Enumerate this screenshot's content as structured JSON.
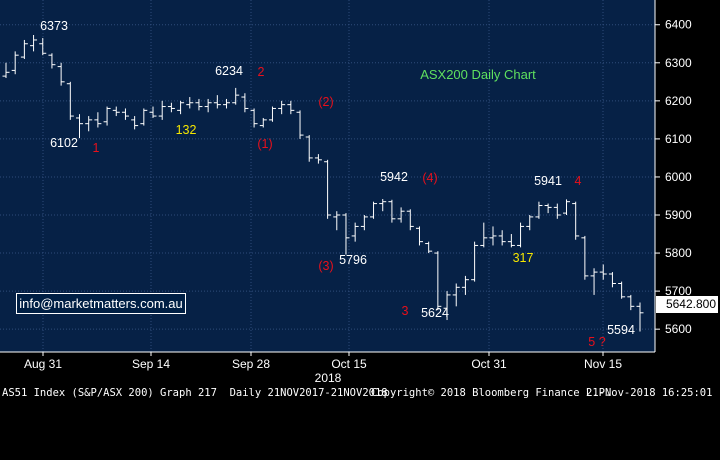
{
  "chart_data": {
    "type": "ohlc",
    "title": "ASX200 Daily Chart",
    "y_ticks": [
      5600,
      5700,
      5800,
      5900,
      6000,
      6100,
      6200,
      6300,
      6400
    ],
    "y_range": [
      5540,
      6465
    ],
    "x_ticks": [
      "Aug 31",
      "Sep 14",
      "Sep 28",
      "Oct 15",
      "Oct 31",
      "Nov 15"
    ],
    "x_year_label": "2018",
    "last_value": "5642.800",
    "grid": true,
    "series": [
      {
        "o": 6265,
        "h": 6300,
        "l": 6260,
        "c": 6275
      },
      {
        "o": 6280,
        "h": 6330,
        "l": 6270,
        "c": 6320
      },
      {
        "o": 6315,
        "h": 6360,
        "l": 6310,
        "c": 6350
      },
      {
        "o": 6345,
        "h": 6373,
        "l": 6330,
        "c": 6360
      },
      {
        "o": 6350,
        "h": 6365,
        "l": 6320,
        "c": 6325
      },
      {
        "o": 6320,
        "h": 6325,
        "l": 6285,
        "c": 6295
      },
      {
        "o": 6290,
        "h": 6300,
        "l": 6240,
        "c": 6250
      },
      {
        "o": 6245,
        "h": 6250,
        "l": 6150,
        "c": 6160
      },
      {
        "o": 6155,
        "h": 6165,
        "l": 6102,
        "c": 6140
      },
      {
        "o": 6140,
        "h": 6160,
        "l": 6120,
        "c": 6150
      },
      {
        "o": 6150,
        "h": 6170,
        "l": 6130,
        "c": 6140
      },
      {
        "o": 6145,
        "h": 6185,
        "l": 6135,
        "c": 6180
      },
      {
        "o": 6175,
        "h": 6185,
        "l": 6160,
        "c": 6170
      },
      {
        "o": 6170,
        "h": 6180,
        "l": 6150,
        "c": 6160
      },
      {
        "o": 6150,
        "h": 6160,
        "l": 6125,
        "c": 6135
      },
      {
        "o": 6140,
        "h": 6180,
        "l": 6135,
        "c": 6175
      },
      {
        "o": 6170,
        "h": 6185,
        "l": 6155,
        "c": 6160
      },
      {
        "o": 6160,
        "h": 6200,
        "l": 6150,
        "c": 6185
      },
      {
        "o": 6185,
        "h": 6195,
        "l": 6170,
        "c": 6180
      },
      {
        "o": 6175,
        "h": 6200,
        "l": 6165,
        "c": 6195
      },
      {
        "o": 6190,
        "h": 6210,
        "l": 6180,
        "c": 6195
      },
      {
        "o": 6195,
        "h": 6205,
        "l": 6175,
        "c": 6185
      },
      {
        "o": 6185,
        "h": 6205,
        "l": 6170,
        "c": 6195
      },
      {
        "o": 6195,
        "h": 6215,
        "l": 6180,
        "c": 6190
      },
      {
        "o": 6190,
        "h": 6205,
        "l": 6180,
        "c": 6195
      },
      {
        "o": 6195,
        "h": 6234,
        "l": 6190,
        "c": 6215
      },
      {
        "o": 6210,
        "h": 6220,
        "l": 6170,
        "c": 6180
      },
      {
        "o": 6175,
        "h": 6180,
        "l": 6130,
        "c": 6140
      },
      {
        "o": 6135,
        "h": 6155,
        "l": 6130,
        "c": 6150
      },
      {
        "o": 6150,
        "h": 6185,
        "l": 6145,
        "c": 6180
      },
      {
        "o": 6180,
        "h": 6200,
        "l": 6165,
        "c": 6190
      },
      {
        "o": 6190,
        "h": 6200,
        "l": 6165,
        "c": 6175
      },
      {
        "o": 6170,
        "h": 6175,
        "l": 6100,
        "c": 6110
      },
      {
        "o": 6105,
        "h": 6110,
        "l": 6040,
        "c": 6050
      },
      {
        "o": 6050,
        "h": 6060,
        "l": 6035,
        "c": 6045
      },
      {
        "o": 6040,
        "h": 6045,
        "l": 5890,
        "c": 5900
      },
      {
        "o": 5895,
        "h": 5910,
        "l": 5860,
        "c": 5900
      },
      {
        "o": 5900,
        "h": 5905,
        "l": 5796,
        "c": 5840
      },
      {
        "o": 5845,
        "h": 5880,
        "l": 5830,
        "c": 5870
      },
      {
        "o": 5870,
        "h": 5900,
        "l": 5860,
        "c": 5895
      },
      {
        "o": 5895,
        "h": 5935,
        "l": 5890,
        "c": 5930
      },
      {
        "o": 5930,
        "h": 5942,
        "l": 5910,
        "c": 5935
      },
      {
        "o": 5935,
        "h": 5940,
        "l": 5880,
        "c": 5890
      },
      {
        "o": 5890,
        "h": 5920,
        "l": 5880,
        "c": 5910
      },
      {
        "o": 5910,
        "h": 5915,
        "l": 5860,
        "c": 5870
      },
      {
        "o": 5865,
        "h": 5870,
        "l": 5820,
        "c": 5830
      },
      {
        "o": 5825,
        "h": 5830,
        "l": 5800,
        "c": 5805
      },
      {
        "o": 5800,
        "h": 5805,
        "l": 5650,
        "c": 5660
      },
      {
        "o": 5655,
        "h": 5700,
        "l": 5624,
        "c": 5690
      },
      {
        "o": 5690,
        "h": 5720,
        "l": 5660,
        "c": 5710
      },
      {
        "o": 5710,
        "h": 5740,
        "l": 5690,
        "c": 5730
      },
      {
        "o": 5730,
        "h": 5830,
        "l": 5725,
        "c": 5820
      },
      {
        "o": 5820,
        "h": 5880,
        "l": 5815,
        "c": 5840
      },
      {
        "o": 5840,
        "h": 5870,
        "l": 5820,
        "c": 5845
      },
      {
        "o": 5845,
        "h": 5860,
        "l": 5820,
        "c": 5830
      },
      {
        "o": 5830,
        "h": 5850,
        "l": 5815,
        "c": 5820
      },
      {
        "o": 5820,
        "h": 5880,
        "l": 5815,
        "c": 5870
      },
      {
        "o": 5870,
        "h": 5900,
        "l": 5860,
        "c": 5895
      },
      {
        "o": 5895,
        "h": 5935,
        "l": 5890,
        "c": 5925
      },
      {
        "o": 5925,
        "h": 5930,
        "l": 5905,
        "c": 5920
      },
      {
        "o": 5920,
        "h": 5930,
        "l": 5890,
        "c": 5900
      },
      {
        "o": 5905,
        "h": 5941,
        "l": 5900,
        "c": 5935
      },
      {
        "o": 5930,
        "h": 5935,
        "l": 5835,
        "c": 5845
      },
      {
        "o": 5840,
        "h": 5845,
        "l": 5730,
        "c": 5740
      },
      {
        "o": 5740,
        "h": 5760,
        "l": 5690,
        "c": 5750
      },
      {
        "o": 5750,
        "h": 5770,
        "l": 5730,
        "c": 5745
      },
      {
        "o": 5745,
        "h": 5750,
        "l": 5710,
        "c": 5720
      },
      {
        "o": 5720,
        "h": 5725,
        "l": 5680,
        "c": 5685
      },
      {
        "o": 5685,
        "h": 5690,
        "l": 5650,
        "c": 5660
      },
      {
        "o": 5660,
        "h": 5670,
        "l": 5594,
        "c": 5643
      }
    ],
    "annotations": [
      {
        "text": "6373",
        "color": "#ffffff",
        "bar": 3,
        "y": 6390
      },
      {
        "text": "6102",
        "color": "#ffffff",
        "bar": 4,
        "y": 6070
      },
      {
        "text": "1",
        "color": "#e8101b",
        "bar": 8,
        "y": 6060
      },
      {
        "text": "132",
        "color": "#f5e600",
        "bar": 15,
        "y": 6105
      },
      {
        "text": "6234",
        "color": "#ffffff",
        "bar": 23,
        "y": 6265
      },
      {
        "text": "2",
        "color": "#e8101b",
        "bar": 27,
        "y": 6265
      },
      {
        "text": "(1)",
        "color": "#e8101b",
        "bar": 27,
        "y": 6065
      },
      {
        "text": "(2)",
        "color": "#e8101b",
        "bar": 32,
        "y": 6180
      },
      {
        "text": "5942",
        "color": "#ffffff",
        "bar": 40,
        "y": 5970
      },
      {
        "text": "(4)",
        "color": "#e8101b",
        "bar": 44,
        "y": 5970
      },
      {
        "text": "(3)",
        "color": "#e8101b",
        "bar": 33,
        "y": 5710
      },
      {
        "text": "5796",
        "color": "#ffffff",
        "bar": 36,
        "y": 5720
      },
      {
        "text": "3",
        "color": "#e8101b",
        "bar": 42,
        "y": 5580
      },
      {
        "text": "5624",
        "color": "#ffffff",
        "bar": 45,
        "y": 5570
      },
      {
        "text": "317",
        "color": "#f5e600",
        "bar": 54,
        "y": 5720
      },
      {
        "text": "5941",
        "color": "#ffffff",
        "bar": 56,
        "y": 5970
      },
      {
        "text": "4",
        "color": "#e8101b",
        "bar": 60,
        "y": 5970
      },
      {
        "text": "5594",
        "color": "#ffffff",
        "bar": 65,
        "y": 5535
      },
      {
        "text": "5 ?",
        "color": "#e8101b",
        "bar": 62,
        "y": 5505
      }
    ]
  },
  "website_label": "info@marketmatters.com.au",
  "footer": {
    "left": "AS51 Index (S&P/ASX 200) Graph 217  Daily 21NOV2017-21NOV2018",
    "middle": "Copyright© 2018 Bloomberg Finance L.P.",
    "right": "21-Nov-2018 16:25:01"
  }
}
